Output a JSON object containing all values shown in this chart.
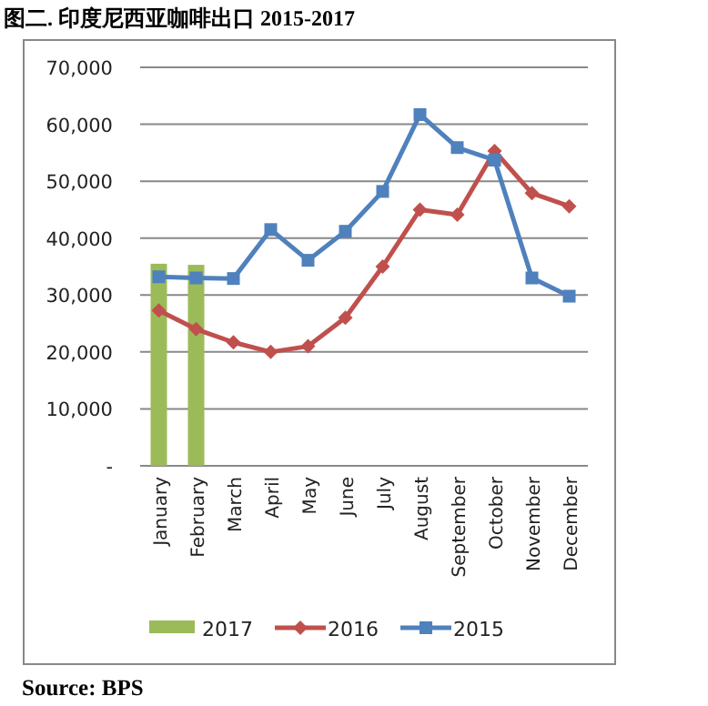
{
  "chart_data": {
    "type": "line",
    "title": "图二. 印度尼西亚咖啡出口 2015-2017",
    "categories": [
      "January",
      "February",
      "March",
      "April",
      "May",
      "June",
      "July",
      "August",
      "September",
      "October",
      "November",
      "December"
    ],
    "series": [
      {
        "name": "2017",
        "type": "bar",
        "color": "#9bbb59",
        "values": [
          35500,
          35300,
          null,
          null,
          null,
          null,
          null,
          null,
          null,
          null,
          null,
          null
        ]
      },
      {
        "name": "2016",
        "marker": "diamond",
        "color": "#c0504d",
        "values": [
          27300,
          24000,
          21700,
          20000,
          21000,
          26000,
          35000,
          45000,
          44100,
          55300,
          47900,
          45600
        ]
      },
      {
        "name": "2015",
        "marker": "square",
        "color": "#4f81bd",
        "values": [
          33200,
          33000,
          32900,
          41500,
          36100,
          41200,
          48200,
          61700,
          55900,
          53700,
          33000,
          29800
        ]
      }
    ],
    "ylim": [
      0,
      70000
    ],
    "yticks": [
      {
        "value": 0,
        "label": "-"
      },
      {
        "value": 10000,
        "label": "10,000"
      },
      {
        "value": 20000,
        "label": "20,000"
      },
      {
        "value": 30000,
        "label": "30,000"
      },
      {
        "value": 40000,
        "label": "40,000"
      },
      {
        "value": 50000,
        "label": "50,000"
      },
      {
        "value": 60000,
        "label": "60,000"
      },
      {
        "value": 70000,
        "label": "70,000"
      }
    ],
    "grid": "y",
    "legend": "bottom",
    "annotations": [
      "Source: BPS"
    ]
  }
}
